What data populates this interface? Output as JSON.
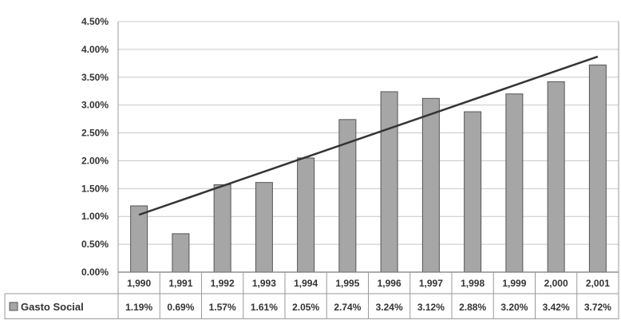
{
  "chart_data": {
    "type": "bar",
    "categories": [
      "1,990",
      "1,991",
      "1,992",
      "1,993",
      "1,994",
      "1,995",
      "1,996",
      "1,997",
      "1,998",
      "1,999",
      "2,000",
      "2,001"
    ],
    "series": [
      {
        "name": "Gasto Social",
        "values": [
          1.19,
          0.69,
          1.57,
          1.61,
          2.05,
          2.74,
          3.24,
          3.12,
          2.88,
          3.2,
          3.42,
          3.72
        ],
        "labels": [
          "1.19%",
          "0.69%",
          "1.57%",
          "1.61%",
          "2.05%",
          "2.74%",
          "3.24%",
          "3.12%",
          "2.88%",
          "3.20%",
          "3.42%",
          "3.72%"
        ],
        "color": "#a6a6a6"
      }
    ],
    "trendline": {
      "start": 1.03,
      "end": 3.87,
      "color": "#333333"
    },
    "y_ticks": [
      "4.50%",
      "4.00%",
      "3.50%",
      "3.00%",
      "2.50%",
      "2.00%",
      "1.50%",
      "1.00%",
      "0.50%",
      "0.00%"
    ],
    "ylim": [
      0,
      4.5
    ],
    "grid": true,
    "legend": "data-table",
    "title": "",
    "xlabel": "",
    "ylabel": ""
  }
}
